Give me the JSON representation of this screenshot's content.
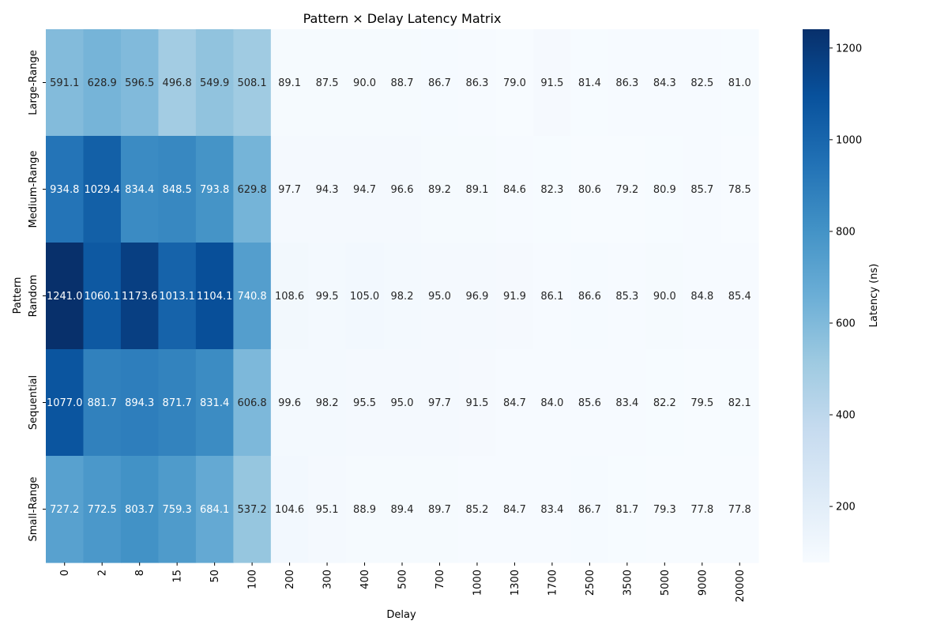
{
  "chart_data": {
    "type": "heatmap",
    "title": "Pattern × Delay Latency Matrix",
    "xlabel": "Delay",
    "ylabel": "Pattern",
    "x_categories": [
      "0",
      "2",
      "8",
      "15",
      "50",
      "100",
      "200",
      "300",
      "400",
      "500",
      "700",
      "1000",
      "1300",
      "1700",
      "2500",
      "3500",
      "5000",
      "9000",
      "20000"
    ],
    "y_categories": [
      "Large-Range",
      "Medium-Range",
      "Random",
      "Sequential",
      "Small-Range"
    ],
    "values": [
      [
        591.1,
        628.9,
        596.5,
        496.8,
        549.9,
        508.1,
        89.1,
        87.5,
        90.0,
        88.7,
        86.7,
        86.3,
        79.0,
        91.5,
        81.4,
        86.3,
        84.3,
        82.5,
        81.0
      ],
      [
        934.8,
        1029.4,
        834.4,
        848.5,
        793.8,
        629.8,
        97.7,
        94.3,
        94.7,
        96.6,
        89.2,
        89.1,
        84.6,
        82.3,
        80.6,
        79.2,
        80.9,
        85.7,
        78.5
      ],
      [
        1241.0,
        1060.1,
        1173.6,
        1013.1,
        1104.1,
        740.8,
        108.6,
        99.5,
        105.0,
        98.2,
        95.0,
        96.9,
        91.9,
        86.1,
        86.6,
        85.3,
        90.0,
        84.8,
        85.4
      ],
      [
        1077.0,
        881.7,
        894.3,
        871.7,
        831.4,
        606.8,
        99.6,
        98.2,
        95.5,
        95.0,
        97.7,
        91.5,
        84.7,
        84.0,
        85.6,
        83.4,
        82.2,
        79.5,
        82.1
      ],
      [
        727.2,
        772.5,
        803.7,
        759.3,
        684.1,
        537.2,
        104.6,
        95.1,
        88.9,
        89.4,
        89.7,
        85.2,
        84.7,
        83.4,
        86.7,
        81.7,
        79.3,
        77.8,
        77.8
      ]
    ],
    "value_format": "1 decimal",
    "colormap": "Blues",
    "vmin": 77.8,
    "vmax": 1241.0,
    "colorbar": {
      "label": "Latency (ns)",
      "ticks": [
        200,
        400,
        600,
        800,
        1000,
        1200
      ]
    },
    "grid": false,
    "legend": "colorbar right"
  }
}
